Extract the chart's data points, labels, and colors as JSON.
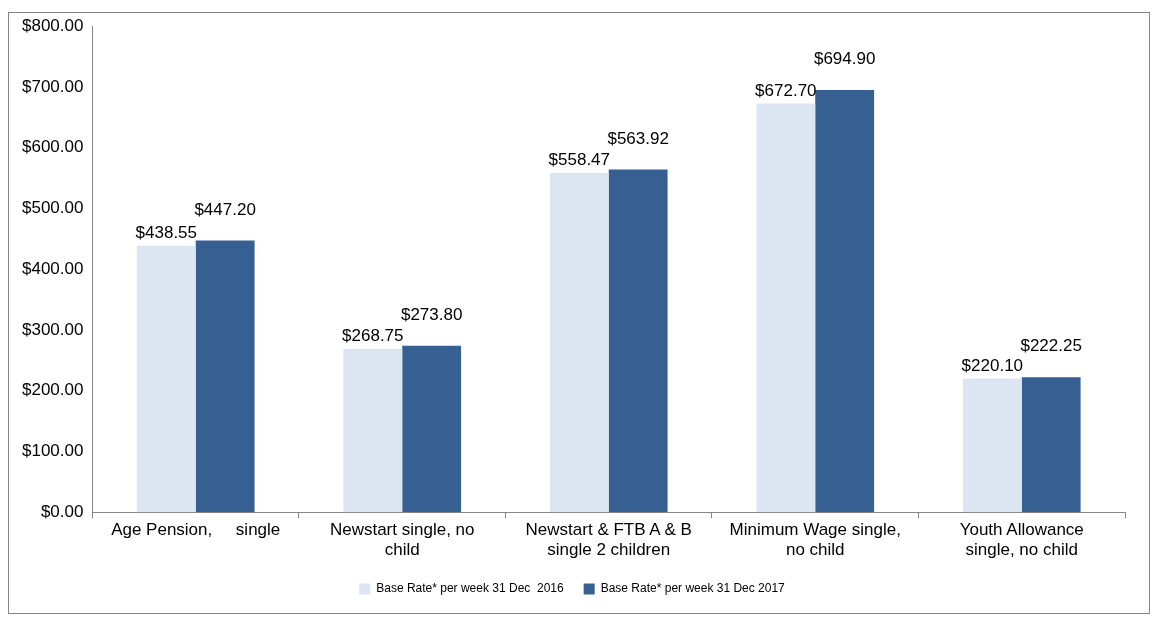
{
  "chart_data": {
    "type": "bar",
    "categories": [
      "Age Pension,     single",
      "Newstart single, no child",
      "Newstart & FTB A & B single 2 children",
      "Minimum Wage single, no child",
      "Youth Allowance single, no child"
    ],
    "series": [
      {
        "name": "Base Rate* per week 31 Dec  2016",
        "color": "#dce6f2",
        "values": [
          438.55,
          268.75,
          558.47,
          672.7,
          220.1
        ],
        "value_labels": [
          "$438.55",
          "$268.75",
          "$558.47",
          "$672.70",
          "$220.10"
        ]
      },
      {
        "name": "Base Rate* per week 31 Dec 2017",
        "color": "#366092",
        "values": [
          447.2,
          273.8,
          563.92,
          694.9,
          222.25
        ],
        "value_labels": [
          "$447.20",
          "$273.80",
          "$563.92",
          "$694.90",
          "$222.25"
        ]
      }
    ],
    "ylim": [
      0,
      800
    ],
    "yticks": [
      {
        "value": 0,
        "label": "$0.00"
      },
      {
        "value": 100,
        "label": "$100.00"
      },
      {
        "value": 200,
        "label": "$200.00"
      },
      {
        "value": 300,
        "label": "$300.00"
      },
      {
        "value": 400,
        "label": "$400.00"
      },
      {
        "value": 500,
        "label": "$500.00"
      },
      {
        "value": 600,
        "label": "$600.00"
      },
      {
        "value": 700,
        "label": "$700.00"
      },
      {
        "value": 800,
        "label": "$800.00"
      }
    ],
    "grid": false,
    "legend": "bottom"
  }
}
